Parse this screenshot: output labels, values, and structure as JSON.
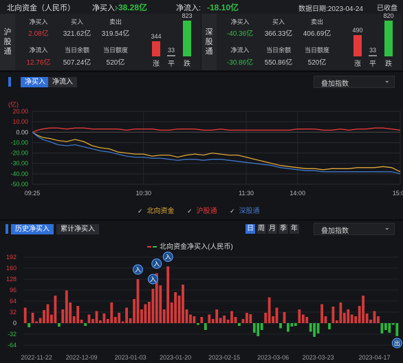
{
  "header": {
    "title": "北向资金（人民币）",
    "net_buy_label": "净买入:",
    "net_buy_value": "-38.28亿",
    "net_inflow_label": "净流入:",
    "net_inflow_value": "-18.10亿",
    "date_label": "数据日期:",
    "date_value": "2023-04-24",
    "status": "已收盘"
  },
  "panels": [
    {
      "name": "沪股通",
      "net_buy_label": "净买入",
      "net_buy": "2.08亿",
      "net_buy_color": "#e23a3a",
      "buy_label": "买入",
      "buy": "321.62亿",
      "sell_label": "卖出",
      "sell": "319.54亿",
      "net_inflow_label": "净流入",
      "net_inflow": "12.76亿",
      "net_inflow_color": "#e23a3a",
      "balance_label": "当日余额",
      "balance": "507.24亿",
      "quota_label": "当日额度",
      "quota": "520亿",
      "up": 344,
      "flat": 33,
      "down": 823,
      "up_label": "涨",
      "flat_label": "平",
      "down_label": "跌"
    },
    {
      "name": "深股通",
      "net_buy_label": "净买入",
      "net_buy": "-40.36亿",
      "net_buy_color": "#2fc043",
      "buy_label": "买入",
      "buy": "366.33亿",
      "sell_label": "卖出",
      "sell": "406.69亿",
      "net_inflow_label": "净流入",
      "net_inflow": "-30.86亿",
      "net_inflow_color": "#2fc043",
      "balance_label": "当日余额",
      "balance": "550.86亿",
      "quota_label": "当日额度",
      "quota": "520亿",
      "up": 490,
      "flat": 33,
      "down": 820,
      "up_label": "涨",
      "flat_label": "平",
      "down_label": "跌"
    }
  ],
  "intraday": {
    "tabs": [
      "净买入",
      "净流入"
    ],
    "active_tab": 0,
    "overlay_label": "叠加指数",
    "legend": [
      {
        "name": "北向资金",
        "color": "#e0a93a"
      },
      {
        "name": "沪股通",
        "color": "#e23a3a"
      },
      {
        "name": "深股通",
        "color": "#3f77c9"
      }
    ]
  },
  "history": {
    "tabs": [
      "历史净买入",
      "累计净买入"
    ],
    "active_tab": 0,
    "periods": [
      "日",
      "周",
      "月",
      "季",
      "年"
    ],
    "active_period": 0,
    "overlay_label": "叠加指数",
    "legend_label": "北向资金净买入(人民币)",
    "marker_in": "入",
    "marker_out": "出"
  },
  "chart_data": [
    {
      "type": "line",
      "title": "",
      "ylabel": "(亿)",
      "ylim": [
        -50,
        20
      ],
      "yticks": [
        "20.00",
        "10.00",
        "0.00",
        "-10.00",
        "-20.00",
        "-30.00",
        "-40.00",
        "-50.00"
      ],
      "ytick_values": [
        20,
        10,
        0,
        -10,
        -20,
        -30,
        -40,
        -50
      ],
      "x_ticks": [
        "09:25",
        "10:30",
        "11:30",
        "14:00",
        "15:00"
      ],
      "x_tick_minutes": [
        0,
        65,
        125,
        155,
        215
      ],
      "x_max": 215,
      "series": [
        {
          "name": "北向资金",
          "color": "#e0a93a",
          "x": [
            0,
            3,
            6,
            10,
            15,
            20,
            25,
            30,
            35,
            40,
            45,
            50,
            55,
            60,
            65,
            70,
            75,
            80,
            85,
            90,
            95,
            100,
            105,
            110,
            115,
            120,
            125,
            130,
            135,
            140,
            145,
            150,
            155,
            160,
            165,
            170,
            175,
            180,
            185,
            190,
            195,
            200,
            205,
            210,
            215
          ],
          "y": [
            0,
            -3,
            -5,
            -6,
            -8,
            -9,
            -7,
            -9,
            -13,
            -15,
            -16,
            -19,
            -20,
            -21,
            -21,
            -23,
            -22,
            -22,
            -24,
            -22,
            -21,
            -22,
            -20,
            -21,
            -22,
            -22,
            -24,
            -26,
            -28,
            -30,
            -32,
            -33,
            -34,
            -35,
            -35,
            -36,
            -35,
            -35,
            -35,
            -34,
            -34,
            -34,
            -33,
            -34,
            -38
          ]
        },
        {
          "name": "沪股通",
          "color": "#e23a3a",
          "x": [
            0,
            3,
            6,
            10,
            15,
            20,
            25,
            30,
            35,
            40,
            45,
            50,
            55,
            60,
            65,
            70,
            75,
            80,
            85,
            90,
            95,
            100,
            105,
            110,
            115,
            120,
            125,
            130,
            135,
            140,
            145,
            150,
            155,
            160,
            165,
            170,
            175,
            180,
            185,
            190,
            195,
            200,
            205,
            210,
            215
          ],
          "y": [
            0,
            2,
            3,
            4,
            4,
            3,
            4,
            4,
            3,
            3,
            3,
            3,
            2,
            3,
            3,
            3,
            2,
            2,
            3,
            3,
            3,
            2,
            2,
            3,
            2,
            2,
            2,
            2,
            2,
            2,
            2,
            2,
            3,
            3,
            3,
            2,
            2,
            3,
            2,
            3,
            3,
            4,
            4,
            3,
            2
          ]
        },
        {
          "name": "深股通",
          "color": "#3f77c9",
          "x": [
            0,
            3,
            6,
            10,
            15,
            20,
            25,
            30,
            35,
            40,
            45,
            50,
            55,
            60,
            65,
            70,
            75,
            80,
            85,
            90,
            95,
            100,
            105,
            110,
            115,
            120,
            125,
            130,
            135,
            140,
            145,
            150,
            155,
            160,
            165,
            170,
            175,
            180,
            185,
            190,
            195,
            200,
            205,
            210,
            215
          ],
          "y": [
            0,
            -4,
            -7,
            -9,
            -12,
            -13,
            -12,
            -14,
            -16,
            -18,
            -19,
            -21,
            -23,
            -24,
            -24,
            -25,
            -25,
            -26,
            -27,
            -26,
            -26,
            -27,
            -26,
            -26,
            -27,
            -28,
            -29,
            -30,
            -31,
            -32,
            -34,
            -35,
            -36,
            -37,
            -37,
            -38,
            -38,
            -38,
            -38,
            -38,
            -38,
            -38,
            -38,
            -38,
            -40
          ]
        }
      ]
    },
    {
      "type": "bar",
      "title": "北向资金净买入(人民币)",
      "ylim": [
        -64,
        192
      ],
      "yticks": [
        "192",
        "160",
        "128",
        "96",
        "64",
        "32",
        "0",
        "-32",
        "-64"
      ],
      "ytick_values": [
        192,
        160,
        128,
        96,
        64,
        32,
        0,
        -32,
        -64
      ],
      "x_ticks": [
        "2022-11-22",
        "2022-12-09",
        "2023-01-03",
        "2023-01-20",
        "2023-02-15",
        "2023-03-06",
        "2023-03-23",
        "2023-04-17"
      ],
      "x_tick_index": [
        3,
        15,
        28,
        40,
        53,
        66,
        78,
        93
      ],
      "markers": [
        {
          "index": 30,
          "label": "入"
        },
        {
          "index": 34,
          "label": "入"
        },
        {
          "index": 35,
          "label": "入"
        },
        {
          "index": 38,
          "label": "入"
        },
        {
          "index": 99,
          "label": "出"
        }
      ],
      "values": [
        45,
        -12,
        30,
        5,
        15,
        38,
        55,
        25,
        80,
        -10,
        40,
        95,
        60,
        20,
        50,
        10,
        -8,
        25,
        12,
        35,
        8,
        28,
        12,
        60,
        18,
        30,
        5,
        45,
        14,
        70,
        128,
        40,
        55,
        62,
        100,
        145,
        110,
        40,
        165,
        60,
        90,
        80,
        112,
        40,
        25,
        20,
        -5,
        18,
        -20,
        25,
        12,
        40,
        15,
        22,
        10,
        35,
        18,
        -8,
        12,
        30,
        26,
        -28,
        -38,
        -20,
        30,
        75,
        20,
        45,
        -15,
        32,
        -25,
        -10,
        -8,
        40,
        25,
        18,
        -25,
        -40,
        -30,
        55,
        20,
        -18,
        48,
        8,
        60,
        30,
        40,
        25,
        20,
        50,
        80,
        28,
        10,
        35,
        20,
        -30,
        -20,
        -28,
        -5,
        -38
      ]
    }
  ]
}
